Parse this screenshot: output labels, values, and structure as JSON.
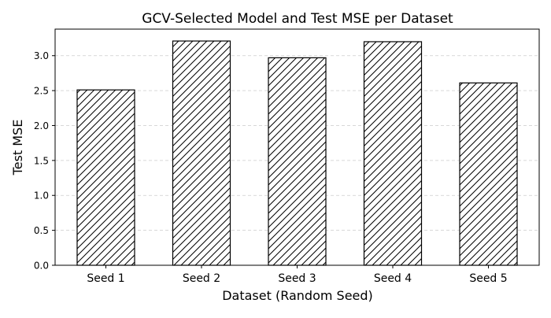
{
  "chart_data": {
    "type": "bar",
    "title": "GCV-Selected Model and Test MSE per Dataset",
    "xlabel": "Dataset (Random Seed)",
    "ylabel": "Test MSE",
    "categories": [
      "Seed 1",
      "Seed 2",
      "Seed 3",
      "Seed 4",
      "Seed 5"
    ],
    "values": [
      2.51,
      3.21,
      2.97,
      3.2,
      2.61
    ],
    "ylim": [
      0,
      3.38
    ],
    "yticks": [
      0.0,
      0.5,
      1.0,
      1.5,
      2.0,
      2.5,
      3.0
    ],
    "ytick_labels": [
      "0.0",
      "0.5",
      "1.0",
      "1.5",
      "2.0",
      "2.5",
      "3.0"
    ],
    "grid": "horizontal dashed",
    "bar_style": {
      "fill": "#ffffff",
      "edge": "#000000",
      "hatch": "diagonal"
    },
    "legend": "none"
  }
}
